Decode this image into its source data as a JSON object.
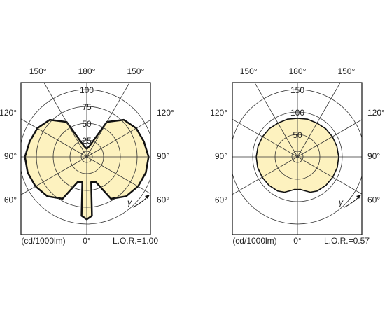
{
  "chart_data": [
    {
      "type": "polar",
      "rlim": [
        0,
        100
      ],
      "rticks": [
        25,
        50,
        75,
        100
      ],
      "thetaticks": [
        {
          "value": -150,
          "label": "150°"
        },
        {
          "value": 180,
          "label": "180°"
        },
        {
          "value": 150,
          "label": "150°"
        },
        {
          "value": -120,
          "label": "120°"
        },
        {
          "value": 120,
          "label": "120°"
        },
        {
          "value": -90,
          "label": "90°"
        },
        {
          "value": 90,
          "label": "90°"
        },
        {
          "value": -60,
          "label": "60°"
        },
        {
          "value": 60,
          "label": "60°"
        },
        {
          "value": 0,
          "label": "0°"
        }
      ],
      "theta": [
        -180,
        -165,
        -150,
        -135,
        -120,
        -105,
        -90,
        -75,
        -60,
        -45,
        -30,
        -20,
        -10,
        -5,
        0,
        5,
        10,
        20,
        30,
        45,
        60,
        75,
        90,
        105,
        120,
        135,
        150,
        165,
        180
      ],
      "values": [
        12,
        17,
        60,
        78,
        85,
        88,
        92,
        91,
        88,
        83,
        72,
        40,
        38,
        88,
        93,
        88,
        38,
        40,
        72,
        83,
        88,
        91,
        92,
        88,
        85,
        78,
        60,
        17,
        12
      ],
      "color": "#fdf2bf",
      "unit": "(cd/1000lm)",
      "lor": "L.O.R.=1.00",
      "gamma": "γ"
    },
    {
      "type": "polar",
      "rlim": [
        0,
        150
      ],
      "rticks": [
        50,
        100,
        150
      ],
      "thetaticks": [
        {
          "value": -150,
          "label": "150°"
        },
        {
          "value": 180,
          "label": "180°"
        },
        {
          "value": 150,
          "label": "150°"
        },
        {
          "value": -120,
          "label": "120°"
        },
        {
          "value": 120,
          "label": "120°"
        },
        {
          "value": -90,
          "label": "90°"
        },
        {
          "value": 90,
          "label": "90°"
        },
        {
          "value": -60,
          "label": "60°"
        },
        {
          "value": 60,
          "label": "60°"
        },
        {
          "value": 0,
          "label": "0°"
        }
      ],
      "theta": [
        -180,
        -165,
        -150,
        -135,
        -120,
        -105,
        -90,
        -75,
        -60,
        -45,
        -30,
        -20,
        -10,
        -5,
        0,
        5,
        10,
        20,
        30,
        45,
        60,
        75,
        90,
        105,
        120,
        135,
        150,
        165,
        180
      ],
      "values": [
        86,
        87,
        87,
        89,
        90,
        91,
        92,
        92,
        91,
        90,
        88,
        84,
        76,
        73,
        73,
        73,
        76,
        84,
        88,
        90,
        91,
        92,
        92,
        91,
        90,
        89,
        87,
        87,
        86
      ],
      "color": "#fdf2bf",
      "unit": "(cd/1000lm)",
      "lor": "L.O.R.=0.57",
      "gamma": "γ"
    }
  ]
}
